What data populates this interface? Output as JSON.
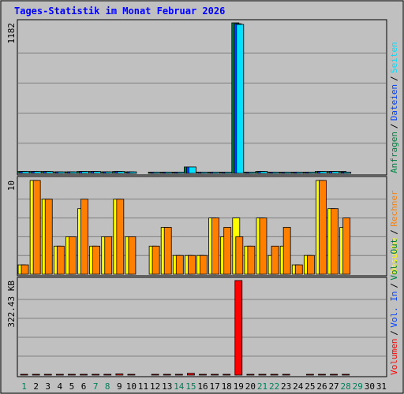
{
  "chart_data": {
    "type": "bar",
    "title": "Tages-Statistik im Monat Februar 2026",
    "colors": {
      "title": "#0000FF",
      "background": "#C0C0C0",
      "grid": "#808080",
      "anfragen": "#008040",
      "dateien": "#0040FF",
      "seiten": "#00E0FF",
      "besuche": "#FFFF00",
      "rechner": "#FF8000",
      "kbytes": "#FF0000",
      "weekday": "#000000",
      "weekend": "#00805C"
    },
    "days": [
      "1",
      "2",
      "3",
      "4",
      "5",
      "6",
      "7",
      "8",
      "9",
      "10",
      "11",
      "12",
      "13",
      "14",
      "15",
      "16",
      "17",
      "18",
      "19",
      "20",
      "21",
      "22",
      "23",
      "24",
      "25",
      "26",
      "27",
      "28",
      "29",
      "30",
      "31"
    ],
    "weekend_days": [
      1,
      7,
      8,
      14,
      15,
      21,
      22,
      28,
      29
    ],
    "panels": [
      {
        "id": "top",
        "ymax": 1182,
        "tick_label": "1182",
        "series": [
          {
            "key": "anfragen",
            "values": [
              15,
              15,
              15,
              12,
              12,
              15,
              15,
              12,
              15,
              12,
              0,
              10,
              10,
              10,
              50,
              10,
              10,
              10,
              1182,
              10,
              15,
              10,
              10,
              10,
              10,
              15,
              15,
              15,
              0,
              0,
              0
            ]
          },
          {
            "key": "dateien",
            "values": [
              15,
              15,
              15,
              12,
              12,
              15,
              15,
              12,
              15,
              12,
              0,
              10,
              10,
              10,
              50,
              10,
              10,
              10,
              1175,
              10,
              15,
              10,
              10,
              10,
              10,
              15,
              15,
              10,
              0,
              0,
              0
            ]
          },
          {
            "key": "seiten",
            "values": [
              15,
              15,
              15,
              12,
              12,
              15,
              15,
              12,
              15,
              12,
              0,
              10,
              10,
              10,
              50,
              10,
              10,
              10,
              1170,
              10,
              15,
              10,
              10,
              10,
              10,
              15,
              15,
              10,
              0,
              0,
              0
            ]
          }
        ],
        "legend": [
          {
            "text": "Anfragen",
            "key": "anfragen"
          },
          {
            "text": "Dateien",
            "key": "dateien"
          },
          {
            "text": "Seiten",
            "key": "seiten"
          }
        ]
      },
      {
        "id": "mid",
        "ymax": 10,
        "tick_label": "10",
        "series": [
          {
            "key": "besuche",
            "values": [
              1,
              10,
              8,
              3,
              4,
              7,
              3,
              4,
              8,
              4,
              0,
              3,
              5,
              2,
              2,
              2,
              6,
              4,
              6,
              3,
              6,
              2,
              3,
              1,
              2,
              10,
              7,
              5,
              0,
              0,
              0
            ]
          },
          {
            "key": "rechner",
            "values": [
              1,
              10,
              8,
              3,
              4,
              8,
              3,
              4,
              8,
              4,
              0,
              3,
              5,
              2,
              2,
              2,
              6,
              5,
              4,
              3,
              6,
              3,
              5,
              1,
              2,
              10,
              7,
              6,
              0,
              0,
              0
            ]
          }
        ],
        "legend": [
          {
            "text": "Besuche",
            "key": "besuche"
          },
          {
            "text": "Rechner",
            "key": "rechner"
          }
        ]
      },
      {
        "id": "bottom",
        "ymax": 322.43,
        "tick_label": "322.43 KB",
        "series": [
          {
            "key": "kbytes",
            "values": [
              2,
              2,
              2,
              2,
              2,
              2,
              2,
              2,
              4,
              2,
              0,
              2,
              2,
              2,
              6,
              2,
              2,
              2,
              322.43,
              2,
              2,
              2,
              2,
              0,
              2,
              2,
              2,
              2,
              0,
              0,
              0
            ]
          }
        ],
        "legend": [
          {
            "text": "Volumen",
            "key": "kbytes"
          },
          {
            "text": "Vol. In",
            "key": "dateien"
          },
          {
            "text": "Vol. Out",
            "key": "anfragen"
          }
        ]
      }
    ]
  }
}
